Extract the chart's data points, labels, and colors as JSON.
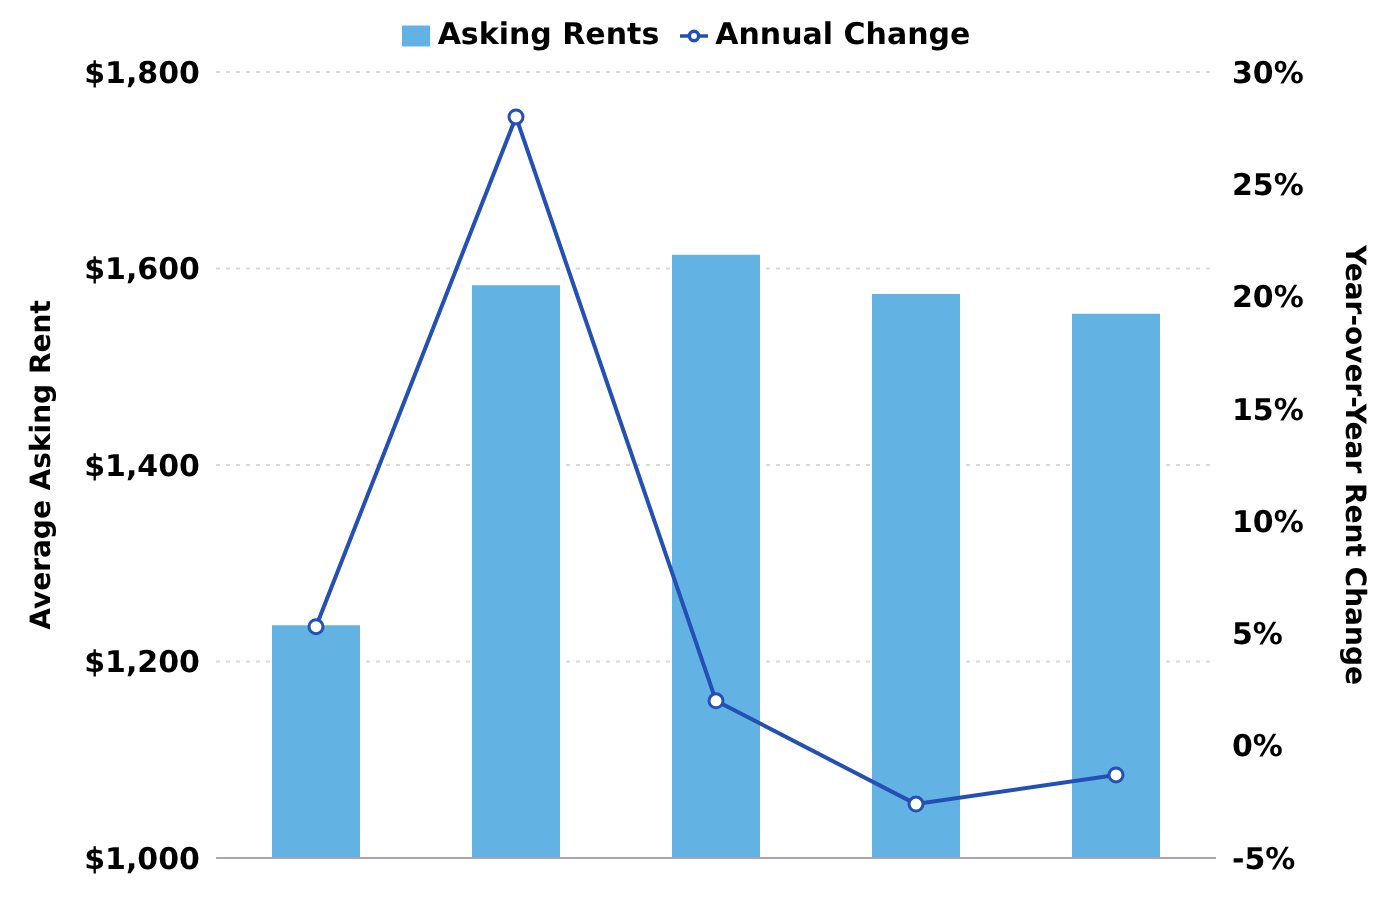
{
  "chart_data": {
    "type": "bar",
    "categories": [
      null,
      null,
      null,
      null,
      null
    ],
    "series": [
      {
        "name": "Asking Rents",
        "color": "#62b3e4",
        "values": [
          1237,
          1583,
          1614,
          1574,
          1554
        ]
      },
      {
        "name": "Annual Change",
        "type": "line",
        "axis": "y2",
        "color": "#2450b5",
        "values": [
          5.3,
          28,
          2,
          -2.6,
          -1.3
        ]
      }
    ],
    "ylabel": "Average Asking Rent",
    "y2label": "Year-over-Year Rent Change",
    "ylim": [
      1000,
      1800
    ],
    "yticks": [
      {
        "value": 1000,
        "label": "$1,000"
      },
      {
        "value": 1200,
        "label": "$1,200"
      },
      {
        "value": 1400,
        "label": "$1,400"
      },
      {
        "value": 1600,
        "label": "$1,600"
      },
      {
        "value": 1800,
        "label": "$1,800"
      }
    ],
    "y2lim": [
      -5,
      30
    ],
    "y2ticks": [
      {
        "value": -5,
        "label": "-5%"
      },
      {
        "value": 0,
        "label": "0%"
      },
      {
        "value": 5,
        "label": "5%"
      },
      {
        "value": 10,
        "label": "10%"
      },
      {
        "value": 15,
        "label": "15%"
      },
      {
        "value": 20,
        "label": "20%"
      },
      {
        "value": 25,
        "label": "25%"
      },
      {
        "value": 30,
        "label": "30%"
      }
    ],
    "grid": "y",
    "legend": "top",
    "marker": "circle",
    "line_style": "solid"
  }
}
